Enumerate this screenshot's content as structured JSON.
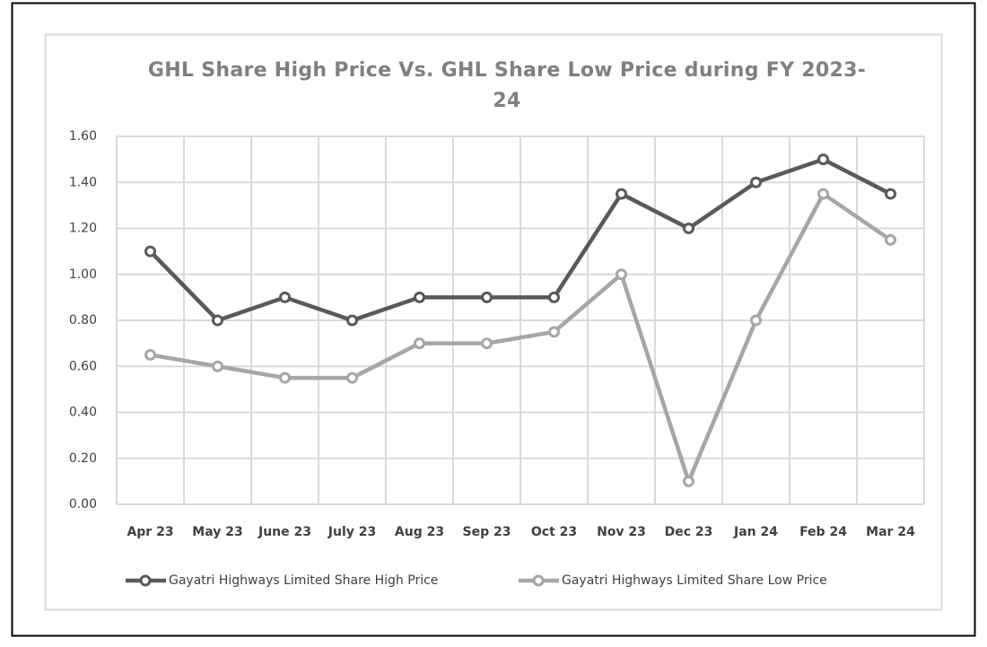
{
  "chart_data": {
    "type": "line",
    "title": "GHL Share High Price Vs. GHL Share Low Price during FY 2023-24",
    "categories": [
      "Apr 23",
      "May 23",
      "June 23",
      "July 23",
      "Aug 23",
      "Sep 23",
      "Oct 23",
      "Nov 23",
      "Dec 23",
      "Jan 24",
      "Feb 24",
      "Mar 24"
    ],
    "series": [
      {
        "name": "Gayatri Highways Limited Share High Price",
        "color": "#595959",
        "values": [
          1.1,
          0.8,
          0.9,
          0.8,
          0.9,
          0.9,
          0.9,
          1.35,
          1.2,
          1.4,
          1.5,
          1.35
        ]
      },
      {
        "name": "Gayatri Highways Limited Share Low Price",
        "color": "#a6a6a6",
        "values": [
          0.65,
          0.6,
          0.55,
          0.55,
          0.7,
          0.7,
          0.75,
          1.0,
          0.1,
          0.8,
          1.35,
          1.15
        ]
      }
    ],
    "ylim": [
      0,
      1.6
    ],
    "yticks": [
      {
        "value": 0,
        "label": "0.00"
      },
      {
        "value": 0.2,
        "label": "0.20"
      },
      {
        "value": 0.4,
        "label": "0.40"
      },
      {
        "value": 0.6,
        "label": "0.60"
      },
      {
        "value": 0.8,
        "label": "0.80"
      },
      {
        "value": 1.0,
        "label": "1.00"
      },
      {
        "value": 1.2,
        "label": "1.20"
      },
      {
        "value": 1.4,
        "label": "1.40"
      },
      {
        "value": 1.6,
        "label": "1.60"
      }
    ],
    "grid": true,
    "legend": "bottom"
  }
}
